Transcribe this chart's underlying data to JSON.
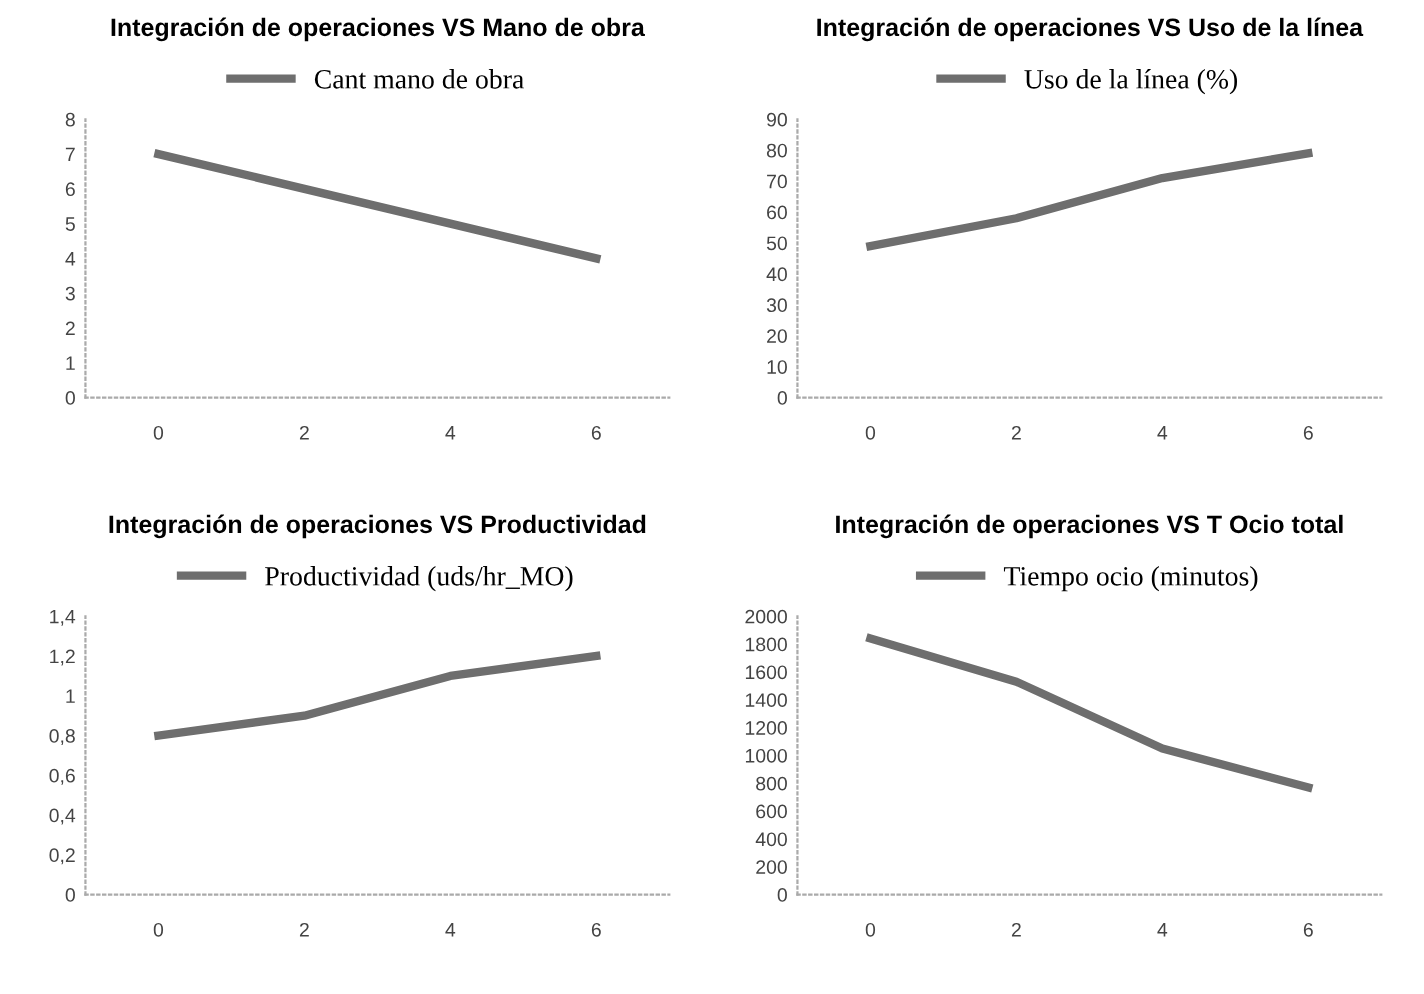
{
  "chart_data": [
    {
      "type": "line",
      "title": "Integración de operaciones VS Mano de obra",
      "categories": [
        "0",
        "2",
        "4",
        "6"
      ],
      "series": [
        {
          "name": "Cant mano de obra",
          "color": "#6e6e6e",
          "values": [
            7,
            6,
            5,
            4
          ]
        }
      ],
      "ylim": [
        0,
        8
      ],
      "yticks": [
        0,
        1,
        2,
        3,
        4,
        5,
        6,
        7,
        8
      ],
      "legend": "top",
      "grid": false
    },
    {
      "type": "line",
      "title": "Integración de operaciones VS Uso de la línea",
      "categories": [
        "0",
        "2",
        "4",
        "6"
      ],
      "series": [
        {
          "name": "Uso de la línea (%)",
          "color": "#6e6e6e",
          "values": [
            49,
            58,
            71,
            79
          ]
        }
      ],
      "ylim": [
        0,
        90
      ],
      "yticks": [
        0,
        10,
        20,
        30,
        40,
        50,
        60,
        70,
        80,
        90
      ],
      "legend": "top",
      "grid": false
    },
    {
      "type": "line",
      "title": "Integración de operaciones VS Productividad",
      "categories": [
        "0",
        "2",
        "4",
        "6"
      ],
      "series": [
        {
          "name": "Productividad (uds/hr_MO)",
          "color": "#6e6e6e",
          "values": [
            0.8,
            0.9,
            1.1,
            1.2
          ]
        }
      ],
      "ylim": [
        0,
        1.4
      ],
      "yticks": [
        0,
        {
          "value": 0.2,
          "label": "0,2"
        },
        {
          "value": 0.4,
          "label": "0,4"
        },
        {
          "value": 0.6,
          "label": "0,6"
        },
        {
          "value": 0.8,
          "label": "0,8"
        },
        1,
        {
          "value": 1.2,
          "label": "1,2"
        },
        {
          "value": 1.4,
          "label": "1,4"
        }
      ],
      "legend": "top",
      "grid": false
    },
    {
      "type": "line",
      "title": "Integración de operaciones VS T Ocio total",
      "categories": [
        "0",
        "2",
        "4",
        "6"
      ],
      "series": [
        {
          "name": "Tiempo ocio (minutos)",
          "color": "#6e6e6e",
          "values": [
            1840,
            1530,
            1050,
            770
          ]
        }
      ],
      "ylim": [
        0,
        2000
      ],
      "yticks": [
        0,
        200,
        400,
        600,
        800,
        1000,
        1200,
        1400,
        1600,
        1800,
        2000
      ],
      "legend": "top",
      "grid": false
    }
  ]
}
